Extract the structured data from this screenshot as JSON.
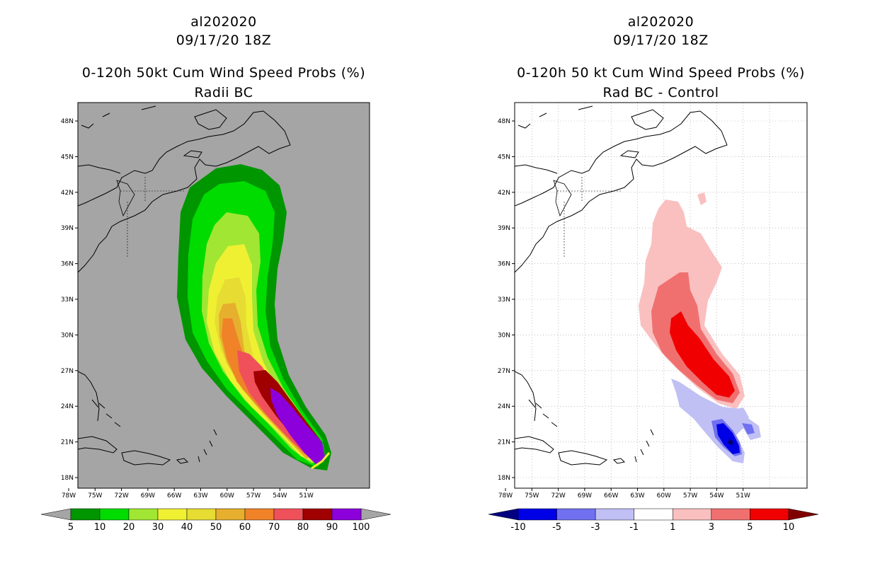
{
  "left_panel": {
    "storm_id": "al202020",
    "datetime": "09/17/20 18Z",
    "title": "0-120h 50kt Cum Wind Speed Probs (%)",
    "subtitle": "Radii BC",
    "lat_labels": [
      "48N",
      "45N",
      "42N",
      "39N",
      "36N",
      "33N",
      "30N",
      "27N",
      "24N",
      "21N",
      "18N"
    ],
    "lon_labels": [
      "78W",
      "75W",
      "72W",
      "69W",
      "66W",
      "63W",
      "60W",
      "57W",
      "54W",
      "51W"
    ],
    "colorbar_labels": [
      "5",
      "10",
      "20",
      "30",
      "40",
      "50",
      "60",
      "70",
      "80",
      "90",
      "100"
    ],
    "colorbar_colors": [
      "#009600",
      "#00dc00",
      "#a0e632",
      "#f0f032",
      "#e6dc32",
      "#e6af2d",
      "#f08228",
      "#f0505a",
      "#a00000",
      "#8c00dc"
    ]
  },
  "right_panel": {
    "storm_id": "al202020",
    "datetime": "09/17/20 18Z",
    "title": "0-120h 50 kt Cum Wind Speed Probs (%)",
    "subtitle": "Rad BC - Control",
    "lat_labels": [
      "48N",
      "45N",
      "42N",
      "39N",
      "36N",
      "33N",
      "30N",
      "27N",
      "24N",
      "21N",
      "18N"
    ],
    "lon_labels": [
      "78W",
      "75W",
      "72W",
      "69W",
      "66W",
      "63W",
      "60W",
      "57W",
      "54W",
      "51W"
    ],
    "colorbar_labels": [
      "-10",
      "-5",
      "-3",
      "-1",
      "1",
      "3",
      "5",
      "10"
    ],
    "colorbar_colors": [
      "#0000e6",
      "#7070f0",
      "#c0c0f5",
      "#ffffff",
      "#fac0c0",
      "#f07070",
      "#f00000"
    ]
  },
  "colors": {
    "map_background_left": "#a5a5a5",
    "map_background_right": "#ffffff",
    "coastline": "#000000"
  }
}
